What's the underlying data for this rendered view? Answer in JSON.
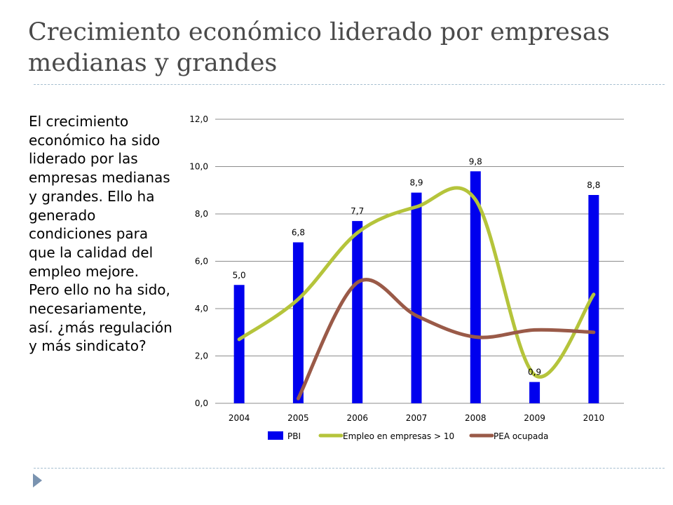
{
  "title": {
    "line1": "Crecimiento económico liderado por empresas",
    "line2": "medianas y grandes"
  },
  "body_text": "El crecimiento económico ha sido liderado por las empresas medianas y grandes. Ello ha generado condiciones para que la calidad del empleo mejore. Pero ello no ha sido, necesariamente, así. ¿más regulación y más sindicato?",
  "chart_data": {
    "type": "bar",
    "categories": [
      "2004",
      "2005",
      "2006",
      "2007",
      "2008",
      "2009",
      "2010"
    ],
    "ylim": [
      0,
      12
    ],
    "yticks": [
      0,
      2,
      4,
      6,
      8,
      10,
      12
    ],
    "ytick_labels": [
      "0,0",
      "2,0",
      "4,0",
      "6,0",
      "8,0",
      "10,0",
      "12,0"
    ],
    "grid": true,
    "legend_position": "bottom",
    "series": [
      {
        "name": "PBI",
        "type": "bar",
        "color": "#0000ee",
        "values": [
          5.0,
          6.8,
          7.7,
          8.9,
          9.8,
          0.9,
          8.8
        ],
        "data_labels": [
          "5,0",
          "6,8",
          "7,7",
          "8,9",
          "9,8",
          "0,9",
          "8,8"
        ]
      },
      {
        "name": "Empleo en empresas > 10",
        "type": "line",
        "smooth": true,
        "color": "#b5c43b",
        "values": [
          2.7,
          4.4,
          7.2,
          8.3,
          8.6,
          1.2,
          4.6
        ]
      },
      {
        "name": "PEA ocupada",
        "type": "line",
        "smooth": true,
        "color": "#9a5a48",
        "values": [
          null,
          0.2,
          5.1,
          3.7,
          2.8,
          3.1,
          3.0
        ]
      }
    ]
  }
}
